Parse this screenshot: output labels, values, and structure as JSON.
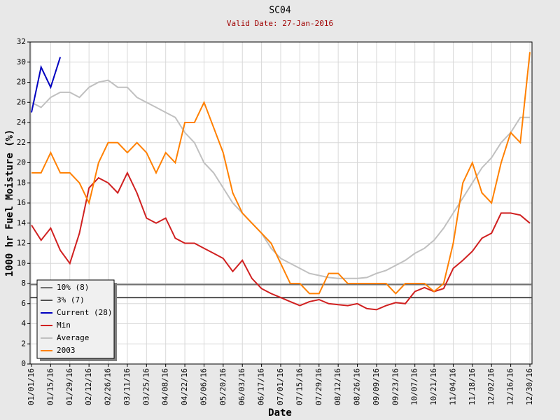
{
  "chart_data": {
    "type": "line",
    "title": "SC04",
    "subtitle": "Valid Date: 27-Jan-2016",
    "xlabel": "Date",
    "ylabel": "1000 hr Fuel Moisture (%)",
    "xlim": [
      "01/01/16",
      "12/30/16"
    ],
    "ylim": [
      0,
      32
    ],
    "yticks": [
      0,
      2,
      4,
      6,
      8,
      10,
      12,
      14,
      16,
      18,
      20,
      22,
      24,
      26,
      28,
      30,
      32
    ],
    "xticks": [
      "01/01/16",
      "01/15/16",
      "01/29/16",
      "02/12/16",
      "02/26/16",
      "03/11/16",
      "03/25/16",
      "04/08/16",
      "04/22/16",
      "05/06/16",
      "05/20/16",
      "06/03/16",
      "06/17/16",
      "07/01/16",
      "07/15/16",
      "07/29/16",
      "08/12/16",
      "08/26/16",
      "09/09/16",
      "09/23/16",
      "10/07/16",
      "10/21/16",
      "11/04/16",
      "11/18/16",
      "12/02/16",
      "12/16/16",
      "12/30/16"
    ],
    "grid": true,
    "legend": "lower left",
    "x": [
      "01/01/16",
      "01/08/16",
      "01/15/16",
      "01/22/16",
      "01/29/16",
      "02/05/16",
      "02/12/16",
      "02/19/16",
      "02/26/16",
      "03/04/16",
      "03/11/16",
      "03/18/16",
      "03/25/16",
      "04/01/16",
      "04/08/16",
      "04/15/16",
      "04/22/16",
      "04/29/16",
      "05/06/16",
      "05/13/16",
      "05/20/16",
      "05/27/16",
      "06/03/16",
      "06/10/16",
      "06/17/16",
      "06/24/16",
      "07/01/16",
      "07/08/16",
      "07/15/16",
      "07/22/16",
      "07/29/16",
      "08/05/16",
      "08/12/16",
      "08/19/16",
      "08/26/16",
      "09/02/16",
      "09/09/16",
      "09/16/16",
      "09/23/16",
      "09/30/16",
      "10/07/16",
      "10/14/16",
      "10/21/16",
      "10/28/16",
      "11/04/16",
      "11/11/16",
      "11/18/16",
      "11/25/16",
      "12/02/16",
      "12/09/16",
      "12/16/16",
      "12/23/16",
      "12/30/16"
    ],
    "reference_lines": [
      {
        "name": "10% (8)",
        "color": "#707070",
        "value": 7.9
      },
      {
        "name": "3% (7)",
        "color": "#505050",
        "value": 6.6
      }
    ],
    "series": [
      {
        "name": "Current (28)",
        "color": "#0000c0",
        "values": [
          25,
          29.5,
          27.5,
          30.5,
          null,
          null,
          null,
          null,
          null,
          null,
          null,
          null,
          null,
          null,
          null,
          null,
          null,
          null,
          null,
          null,
          null,
          null,
          null,
          null,
          null,
          null,
          null,
          null,
          null,
          null,
          null,
          null,
          null,
          null,
          null,
          null,
          null,
          null,
          null,
          null,
          null,
          null,
          null,
          null,
          null,
          null,
          null,
          null,
          null,
          null,
          null,
          null,
          null
        ]
      },
      {
        "name": "Min",
        "color": "#d02020",
        "values": [
          13.8,
          12.3,
          13.5,
          11.3,
          10,
          13,
          17.5,
          18.5,
          18,
          17,
          19,
          17,
          14.5,
          14,
          14.5,
          12.5,
          12,
          12,
          11.5,
          11,
          10.5,
          9.2,
          10.3,
          8.5,
          7.5,
          7,
          6.6,
          6.2,
          5.8,
          6.2,
          6.4,
          6,
          5.9,
          5.8,
          6,
          5.5,
          5.4,
          5.8,
          6.1,
          6,
          7.2,
          7.6,
          7.2,
          7.5,
          9.5,
          10.3,
          11.2,
          12.5,
          13,
          15,
          15,
          14.8,
          14
        ]
      },
      {
        "name": "Average",
        "color": "#c0c0c0",
        "values": [
          26,
          25.5,
          26.5,
          27,
          27,
          26.5,
          27.5,
          28,
          28.2,
          27.5,
          27.5,
          26.5,
          26,
          25.5,
          25,
          24.5,
          23,
          22,
          20,
          19,
          17.5,
          16,
          15,
          14,
          13,
          11.5,
          10.5,
          10,
          9.5,
          9,
          8.8,
          8.6,
          8.5,
          8.5,
          8.5,
          8.6,
          9,
          9.3,
          9.8,
          10.3,
          11,
          11.5,
          12.3,
          13.5,
          15,
          16.5,
          18,
          19.5,
          20.5,
          22,
          23,
          24.5,
          24.5
        ]
      },
      {
        "name": "2003",
        "color": "#ff8000",
        "values": [
          19,
          19,
          21,
          19,
          19,
          18,
          16,
          20,
          22,
          22,
          21,
          22,
          21,
          19,
          21,
          20,
          24,
          24,
          26,
          23.5,
          21,
          17,
          15,
          14,
          13,
          12,
          10,
          8,
          8,
          7,
          7,
          9,
          9,
          8,
          8,
          8,
          8,
          8,
          7,
          8,
          8,
          8,
          7.2,
          8,
          12,
          18,
          20,
          17,
          16,
          20,
          23,
          22,
          31
        ]
      }
    ]
  }
}
